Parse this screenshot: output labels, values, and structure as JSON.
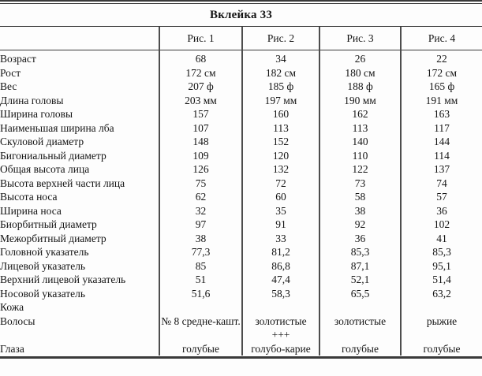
{
  "title": "Вклейка 33",
  "columns": [
    "",
    "Рис. 1",
    "Рис. 2",
    "Рис. 3",
    "Рис. 4"
  ],
  "rows": [
    {
      "label": "Возраст",
      "values": [
        "68",
        "34",
        "26",
        "22"
      ]
    },
    {
      "label": "Рост",
      "values": [
        "172 см",
        "182 см",
        "180 см",
        "172 см"
      ]
    },
    {
      "label": "Вес",
      "values": [
        "207 ф",
        "185 ф",
        "188 ф",
        "165 ф"
      ]
    },
    {
      "label": "Длина головы",
      "values": [
        "203 мм",
        "197 мм",
        "190 мм",
        "191 мм"
      ]
    },
    {
      "label": "Ширина головы",
      "values": [
        "157",
        "160",
        "162",
        "163"
      ]
    },
    {
      "label": "Наименьшая ширина лба",
      "values": [
        "107",
        "113",
        "113",
        "117"
      ]
    },
    {
      "label": "Скуловой диаметр",
      "values": [
        "148",
        "152",
        "140",
        "144"
      ]
    },
    {
      "label": "Бигониальный диаметр",
      "values": [
        "109",
        "120",
        "110",
        "114"
      ]
    },
    {
      "label": "Общая высота лица",
      "values": [
        "126",
        "132",
        "122",
        "137"
      ]
    },
    {
      "label": "Высота верхней части лица",
      "values": [
        "75",
        "72",
        "73",
        "74"
      ]
    },
    {
      "label": "Высота носа",
      "values": [
        "62",
        "60",
        "58",
        "57"
      ]
    },
    {
      "label": "Ширина носа",
      "values": [
        "32",
        "35",
        "38",
        "36"
      ]
    },
    {
      "label": "Биорбитный диаметр",
      "values": [
        "97",
        "91",
        "92",
        "102"
      ]
    },
    {
      "label": "Межорбитный диаметр",
      "values": [
        "38",
        "33",
        "36",
        "41"
      ]
    },
    {
      "label": "Головной указатель",
      "values": [
        "77,3",
        "81,2",
        "85,3",
        "85,3"
      ]
    },
    {
      "label": "Лицевой указатель",
      "values": [
        "85",
        "86,8",
        "87,1",
        "95,1"
      ]
    },
    {
      "label": "Верхний лицевой указатель",
      "values": [
        "51",
        "47,4",
        "52,1",
        "51,4"
      ]
    },
    {
      "label": "Носовой указатель",
      "values": [
        "51,6",
        "58,3",
        "65,5",
        "63,2"
      ]
    },
    {
      "label": "Кожа",
      "values": [
        "",
        "",
        "",
        ""
      ]
    },
    {
      "label": "Волосы",
      "values": [
        "№ 8 средне-кашт.",
        "золотистые",
        "золотистые",
        "рыжие"
      ]
    },
    {
      "label": "",
      "values": [
        "",
        "+++",
        "",
        ""
      ]
    },
    {
      "label": "Глаза",
      "values": [
        "голубые",
        "голубо-карие",
        "голубые",
        "голубые"
      ]
    }
  ]
}
